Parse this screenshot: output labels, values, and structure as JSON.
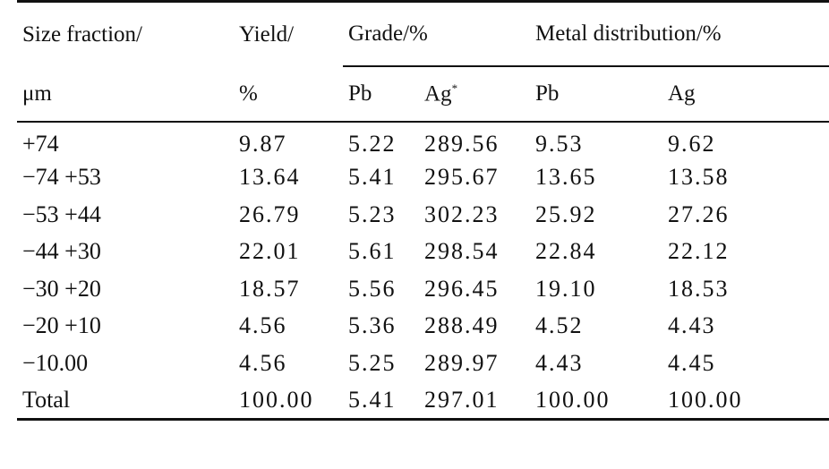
{
  "table": {
    "header": {
      "size_fraction": "Size fraction/",
      "size_unit": "μm",
      "yield": "Yield/",
      "yield_unit": "%",
      "grade_group": "Grade/%",
      "metal_group": "Metal distribution/%",
      "grade_pb": "Pb",
      "grade_ag": "Ag",
      "grade_ag_mark": "*",
      "metal_pb": "Pb",
      "metal_ag": "Ag"
    },
    "rows": [
      {
        "size": "+74",
        "yield": "9.87",
        "grade_pb": "5.22",
        "grade_ag": "289.56",
        "metal_pb": "9.53",
        "metal_ag": "9.62"
      },
      {
        "size": "−74 +53",
        "yield": "13.64",
        "grade_pb": "5.41",
        "grade_ag": "295.67",
        "metal_pb": "13.65",
        "metal_ag": "13.58"
      },
      {
        "size": "−53 +44",
        "yield": "26.79",
        "grade_pb": "5.23",
        "grade_ag": "302.23",
        "metal_pb": "25.92",
        "metal_ag": "27.26"
      },
      {
        "size": "−44 +30",
        "yield": "22.01",
        "grade_pb": "5.61",
        "grade_ag": "298.54",
        "metal_pb": "22.84",
        "metal_ag": "22.12"
      },
      {
        "size": "−30 +20",
        "yield": "18.57",
        "grade_pb": "5.56",
        "grade_ag": "296.45",
        "metal_pb": "19.10",
        "metal_ag": "18.53"
      },
      {
        "size": "−20 +10",
        "yield": "4.56",
        "grade_pb": "5.36",
        "grade_ag": "288.49",
        "metal_pb": "4.52",
        "metal_ag": "4.43"
      },
      {
        "size": "−10.00",
        "yield": "4.56",
        "grade_pb": "5.25",
        "grade_ag": "289.97",
        "metal_pb": "4.43",
        "metal_ag": "4.45"
      },
      {
        "size": "Total",
        "yield": "100.00",
        "grade_pb": "5.41",
        "grade_ag": "297.01",
        "metal_pb": "100.00",
        "metal_ag": "100.00"
      }
    ]
  }
}
